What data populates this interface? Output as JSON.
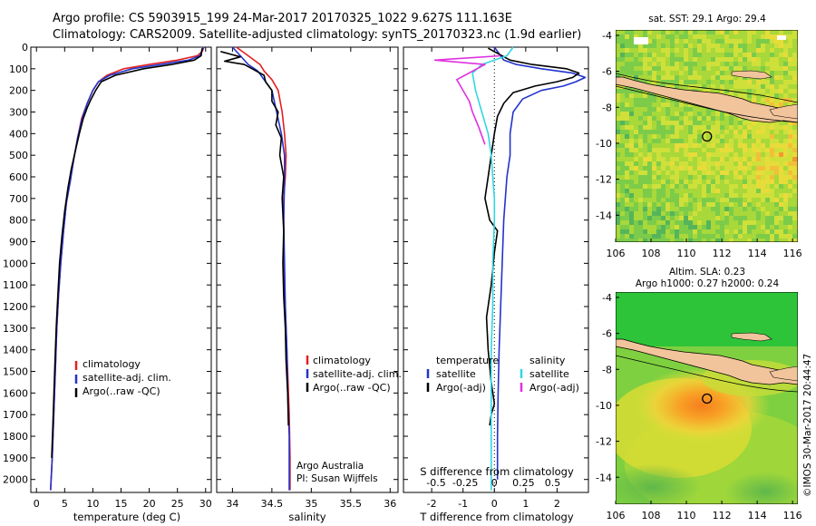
{
  "header": {
    "line1": "Argo profile: CS 5903915_199 24-Mar-2017 20170325_1022 9.627S 111.163E",
    "line2": "Climatology: CARS2009. Satellite-adjusted climatology: synTS_20170323.nc (1.9d earlier)"
  },
  "colors": {
    "climatology": "#e32020",
    "satellite": "#2233cc",
    "argo": "#000000",
    "sal_sat": "#33d6e0",
    "sal_argo": "#e030e0",
    "land": "#f2c49c"
  },
  "chart_data": [
    {
      "type": "line",
      "id": "temperature",
      "xlabel": "temperature (deg C)",
      "ylabel": "",
      "xlim": [
        -1,
        31
      ],
      "ylim": [
        2060,
        0
      ],
      "xticks": [
        0,
        5,
        10,
        15,
        20,
        25,
        30
      ],
      "yticks": [
        0,
        100,
        200,
        300,
        400,
        500,
        600,
        700,
        800,
        900,
        1000,
        1100,
        1200,
        1300,
        1400,
        1500,
        1600,
        1700,
        1800,
        1900,
        2000
      ],
      "legend": [
        "climatology",
        "satellite-adj. clim.",
        "Argo(..raw -QC)"
      ],
      "series": [
        {
          "name": "climatology",
          "color": "#e32020",
          "x": [
            29.7,
            29.4,
            28.5,
            25,
            20,
            15.5,
            12.5,
            11,
            10,
            9,
            8,
            7.3,
            6.6,
            6,
            5.3,
            4.8,
            4.3,
            3.9,
            3.6,
            3.4,
            3.2,
            3,
            2.8,
            2.6,
            2.5
          ],
          "y": [
            0,
            20,
            40,
            60,
            80,
            100,
            130,
            160,
            200,
            260,
            330,
            420,
            520,
            620,
            720,
            850,
            1000,
            1150,
            1300,
            1450,
            1600,
            1750,
            1900,
            2000,
            2050
          ]
        },
        {
          "name": "satellite-adj. clim.",
          "color": "#2233cc",
          "x": [
            29.6,
            29.3,
            29,
            27,
            22,
            17,
            13,
            11,
            10,
            9,
            8.1,
            7.3,
            6.6,
            6,
            5.3,
            4.8,
            4.3,
            3.9,
            3.6,
            3.4,
            3.2,
            3,
            2.8,
            2.6,
            2.5
          ],
          "y": [
            0,
            20,
            40,
            60,
            80,
            100,
            130,
            160,
            200,
            260,
            330,
            420,
            520,
            620,
            720,
            850,
            1000,
            1150,
            1300,
            1450,
            1600,
            1750,
            1900,
            2000,
            2050
          ]
        },
        {
          "name": "Argo(..raw -QC)",
          "color": "#000000",
          "x": [
            29.4,
            29.3,
            29.2,
            28,
            24,
            19,
            14,
            11.5,
            10.5,
            9.7,
            9,
            8.3,
            7.6,
            6.9,
            6.2,
            5.6,
            5,
            4.5,
            4.1,
            3.8,
            3.5,
            3.3,
            3.1,
            2.9,
            2.7
          ],
          "y": [
            5,
            20,
            40,
            60,
            80,
            100,
            130,
            160,
            200,
            240,
            280,
            330,
            400,
            480,
            560,
            650,
            760,
            880,
            1000,
            1150,
            1300,
            1450,
            1600,
            1750,
            1900
          ]
        }
      ]
    },
    {
      "type": "line",
      "id": "salinity",
      "xlabel": "salinity",
      "ylabel": "",
      "xlim": [
        33.8,
        36.1
      ],
      "ylim": [
        2060,
        0
      ],
      "xticks": [
        34,
        34.5,
        35,
        35.5,
        36
      ],
      "legend": [
        "climatology",
        "satellite-adj. clim.",
        "Argo(..raw -QC)"
      ],
      "annotation": [
        "Argo Australia",
        "PI: Susan Wijffels"
      ],
      "series": [
        {
          "name": "climatology",
          "color": "#e32020",
          "x": [
            34.05,
            34.2,
            34.35,
            34.4,
            34.5,
            34.58,
            34.63,
            34.66,
            34.68,
            34.67,
            34.65,
            34.65,
            34.66,
            34.68,
            34.7,
            34.72,
            34.73,
            34.73,
            34.73
          ],
          "y": [
            0,
            40,
            80,
            110,
            150,
            200,
            300,
            400,
            500,
            600,
            700,
            900,
            1100,
            1300,
            1500,
            1700,
            1900,
            2000,
            2050
          ]
        },
        {
          "name": "satellite-adj. clim.",
          "color": "#2233cc",
          "x": [
            34.0,
            34.1,
            34.2,
            34.32,
            34.4,
            34.5,
            34.56,
            34.62,
            34.66,
            34.66,
            34.65,
            34.66,
            34.67,
            34.69,
            34.7,
            34.72,
            34.72,
            34.72
          ],
          "y": [
            0,
            40,
            80,
            110,
            150,
            200,
            300,
            400,
            500,
            600,
            800,
            1000,
            1200,
            1400,
            1600,
            1800,
            2000,
            2050
          ]
        },
        {
          "name": "Argo(..raw -QC)",
          "color": "#000000",
          "x": [
            33.85,
            34.1,
            33.9,
            34.15,
            34.25,
            34.4,
            34.42,
            34.5,
            34.5,
            34.58,
            34.55,
            34.62,
            34.6,
            34.65,
            34.63,
            34.65,
            34.64,
            34.65,
            34.67,
            34.68,
            34.7,
            34.71
          ],
          "y": [
            20,
            45,
            65,
            80,
            100,
            130,
            160,
            200,
            250,
            300,
            360,
            420,
            500,
            600,
            700,
            850,
            1000,
            1150,
            1300,
            1450,
            1600,
            1750
          ]
        }
      ]
    },
    {
      "type": "line",
      "id": "difference",
      "xlabel": "T difference from climatology",
      "top_xlabel": "S difference from climatology",
      "xlim": [
        -2.9,
        3.0
      ],
      "ylim": [
        2060,
        0
      ],
      "xticks": [
        -2,
        -1,
        0,
        1,
        2
      ],
      "top_xticks": [
        "-0.5",
        "-0.25",
        "0",
        "0.25",
        "0.5"
      ],
      "legend_titles": [
        "temperature",
        "salinity"
      ],
      "legend": [
        "satellite",
        "Argo(-adj)",
        "satellite",
        "Argo(-adj)"
      ],
      "series": [
        {
          "name": "satellite",
          "group": "temperature",
          "color": "#2233cc",
          "x": [
            0,
            0.3,
            0.7,
            1.5,
            2.5,
            2.9,
            2.6,
            2.2,
            1.5,
            0.9,
            0.6,
            0.5,
            0.5,
            0.4,
            0.3,
            0.25,
            0.2,
            0.15,
            0.12,
            0.1,
            0.1
          ],
          "y": [
            0,
            60,
            80,
            100,
            120,
            140,
            160,
            180,
            200,
            240,
            300,
            400,
            500,
            600,
            800,
            1000,
            1200,
            1400,
            1600,
            1800,
            2000
          ]
        },
        {
          "name": "Argo(-adj)",
          "group": "temperature",
          "color": "#000000",
          "x": [
            -0.2,
            0.5,
            1.2,
            2.3,
            2.7,
            2.5,
            2.0,
            1.3,
            0.6,
            0.3,
            0.1,
            0,
            -0.1,
            -0.2,
            -0.3,
            -0.15,
            0.1,
            0,
            -0.1,
            -0.25,
            -0.2,
            -0.1,
            0,
            -0.1,
            -0.15
          ],
          "y": [
            5,
            60,
            80,
            100,
            120,
            140,
            160,
            180,
            210,
            260,
            320,
            400,
            500,
            600,
            700,
            800,
            850,
            950,
            1100,
            1250,
            1400,
            1550,
            1650,
            1700,
            1750
          ]
        },
        {
          "name": "satellite",
          "group": "salinity",
          "color": "#33d6e0",
          "x": [
            0.6,
            0.4,
            -0.4,
            -0.7,
            -0.6,
            -0.4,
            -0.2,
            -0.1,
            -0.05,
            0,
            0,
            -0.05,
            -0.05,
            -0.1,
            -0.1,
            -0.1,
            -0.1,
            -0.1
          ],
          "y": [
            0,
            40,
            80,
            120,
            200,
            300,
            400,
            500,
            600,
            700,
            800,
            1000,
            1200,
            1400,
            1600,
            1800,
            2000,
            2050
          ]
        },
        {
          "name": "Argo(-adj)",
          "group": "salinity",
          "color": "#e030e0",
          "x": [
            0.2,
            -1.9,
            -0.3,
            -1.2,
            -0.8,
            -0.7,
            -0.5,
            -0.3
          ],
          "y": [
            40,
            60,
            80,
            150,
            250,
            300,
            370,
            450
          ]
        }
      ]
    },
    {
      "type": "heatmap",
      "id": "sst_map",
      "title": "sat. SST: 29.1  Argo: 29.4",
      "xticks": [
        106,
        108,
        110,
        112,
        114,
        116
      ],
      "yticks": [
        -4,
        -6,
        -8,
        -10,
        -12,
        -14
      ],
      "xlim": [
        106,
        116.3
      ],
      "ylim": [
        -15.5,
        -3.7
      ],
      "float": {
        "lon": 111.163,
        "lat": -9.627
      }
    },
    {
      "type": "heatmap",
      "id": "sla_map",
      "title": "Altim. SLA: 0.23",
      "subtitle": "Argo h1000: 0.27 h2000: 0.24",
      "xticks": [
        106,
        108,
        110,
        112,
        114,
        116
      ],
      "yticks": [
        -4,
        -6,
        -8,
        -10,
        -12,
        -14
      ],
      "xlim": [
        106,
        116.3
      ],
      "ylim": [
        -15.5,
        -3.7
      ],
      "float": {
        "lon": 111.163,
        "lat": -9.627
      }
    }
  ],
  "side_stamp": "©IMOS 30-Mar-2017 20:44:47"
}
